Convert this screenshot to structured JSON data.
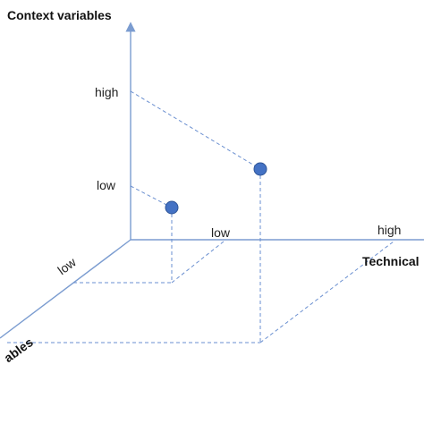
{
  "axes": {
    "context_label": "Context variables",
    "technical_label": "Technical",
    "third_label": "ables"
  },
  "ticks": {
    "context_high": "high",
    "context_low": "low",
    "technical_low": "low",
    "technical_high": "high",
    "depth_low": "low"
  },
  "points": [
    {
      "name": "low-low-low"
    },
    {
      "name": "high-high-high"
    }
  ],
  "colors": {
    "axis": "#7b9cd0",
    "guide": "#6a8fd0",
    "point_fill": "#4472c4",
    "point_stroke": "#2f5597"
  }
}
